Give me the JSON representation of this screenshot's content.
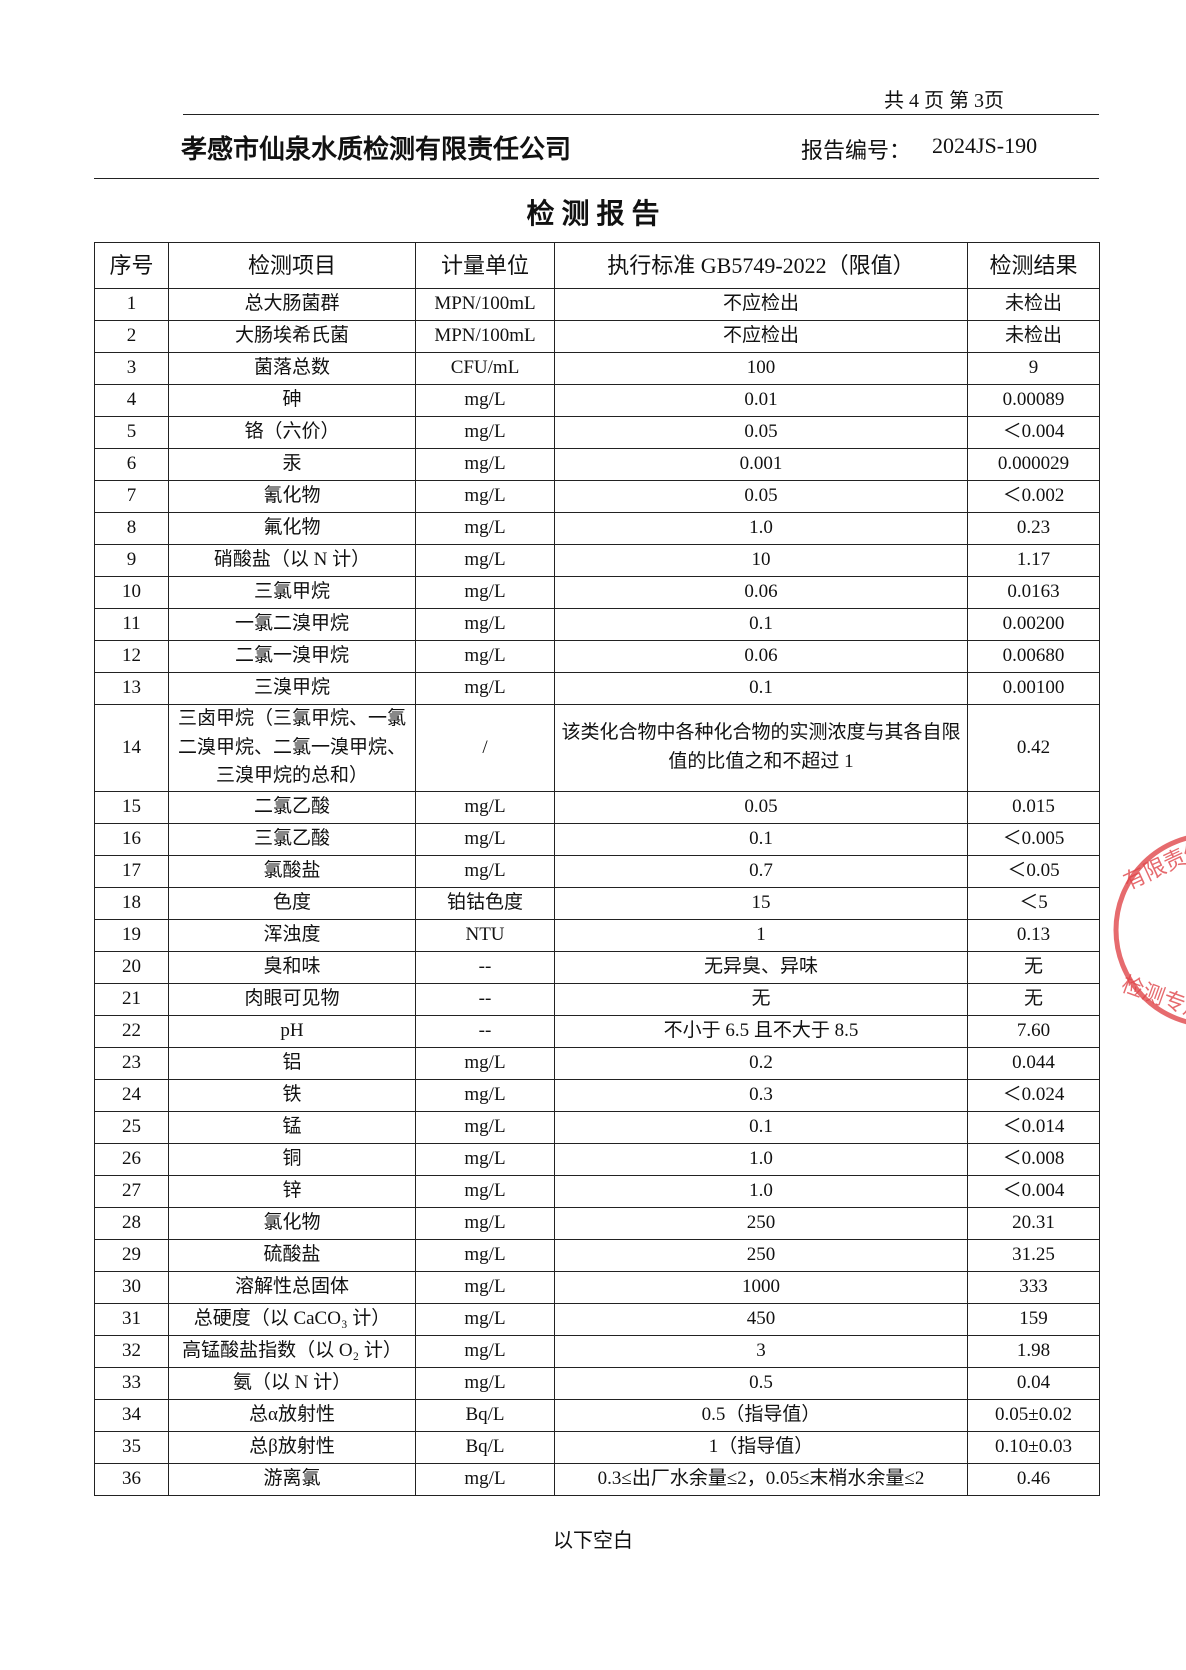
{
  "header": {
    "page_info": "共 4 页 第 3页",
    "company": "孝感市仙泉水质检测有限责任公司",
    "report_no_label": "报告编号：",
    "report_no": "2024JS-190"
  },
  "title": "检 测 报 告",
  "table": {
    "header": [
      "序号",
      "检测项目",
      "计量单位",
      "执行标准 GB5749-2022（限值）",
      "检测结果"
    ],
    "rows": [
      [
        "1",
        "总大肠菌群",
        "MPN/100mL",
        "不应检出",
        "未检出"
      ],
      [
        "2",
        "大肠埃希氏菌",
        "MPN/100mL",
        "不应检出",
        "未检出"
      ],
      [
        "3",
        "菌落总数",
        "CFU/mL",
        "100",
        "9"
      ],
      [
        "4",
        "砷",
        "mg/L",
        "0.01",
        "0.00089"
      ],
      [
        "5",
        "铬（六价）",
        "mg/L",
        "0.05",
        "＜0.004"
      ],
      [
        "6",
        "汞",
        "mg/L",
        "0.001",
        "0.000029"
      ],
      [
        "7",
        "氰化物",
        "mg/L",
        "0.05",
        "＜0.002"
      ],
      [
        "8",
        "氟化物",
        "mg/L",
        "1.0",
        "0.23"
      ],
      [
        "9",
        "硝酸盐（以 N 计）",
        "mg/L",
        "10",
        "1.17"
      ],
      [
        "10",
        "三氯甲烷",
        "mg/L",
        "0.06",
        "0.0163"
      ],
      [
        "11",
        "一氯二溴甲烷",
        "mg/L",
        "0.1",
        "0.00200"
      ],
      [
        "12",
        "二氯一溴甲烷",
        "mg/L",
        "0.06",
        "0.00680"
      ],
      [
        "13",
        "三溴甲烷",
        "mg/L",
        "0.1",
        "0.00100"
      ],
      [
        "14",
        "三卤甲烷（三氯甲烷、一氯二溴甲烷、二氯一溴甲烷、三溴甲烷的总和）",
        "/",
        "该类化合物中各种化合物的实测浓度与其各自限值的比值之和不超过 1",
        "0.42"
      ],
      [
        "15",
        "二氯乙酸",
        "mg/L",
        "0.05",
        "0.015"
      ],
      [
        "16",
        "三氯乙酸",
        "mg/L",
        "0.1",
        "＜0.005"
      ],
      [
        "17",
        "氯酸盐",
        "mg/L",
        "0.7",
        "＜0.05"
      ],
      [
        "18",
        "色度",
        "铂钴色度",
        "15",
        "＜5"
      ],
      [
        "19",
        "浑浊度",
        "NTU",
        "1",
        "0.13"
      ],
      [
        "20",
        "臭和味",
        "--",
        "无异臭、异味",
        "无"
      ],
      [
        "21",
        "肉眼可见物",
        "--",
        "无",
        "无"
      ],
      [
        "22",
        "pH",
        "--",
        "不小于 6.5 且不大于 8.5",
        "7.60"
      ],
      [
        "23",
        "铝",
        "mg/L",
        "0.2",
        "0.044"
      ],
      [
        "24",
        "铁",
        "mg/L",
        "0.3",
        "＜0.024"
      ],
      [
        "25",
        "锰",
        "mg/L",
        "0.1",
        "＜0.014"
      ],
      [
        "26",
        "铜",
        "mg/L",
        "1.0",
        "＜0.008"
      ],
      [
        "27",
        "锌",
        "mg/L",
        "1.0",
        "＜0.004"
      ],
      [
        "28",
        "氯化物",
        "mg/L",
        "250",
        "20.31"
      ],
      [
        "29",
        "硫酸盐",
        "mg/L",
        "250",
        "31.25"
      ],
      [
        "30",
        "溶解性总固体",
        "mg/L",
        "1000",
        "333"
      ],
      [
        "31",
        "总硬度（以 CaCO₃ 计）",
        "mg/L",
        "450",
        "159"
      ],
      [
        "32",
        "高锰酸盐指数（以 O₂ 计）",
        "mg/L",
        "3",
        "1.98"
      ],
      [
        "33",
        "氨（以 N 计）",
        "mg/L",
        "0.5",
        "0.04"
      ],
      [
        "34",
        "总α放射性",
        "Bq/L",
        "0.5（指导值）",
        "0.05±0.02"
      ],
      [
        "35",
        "总β放射性",
        "Bq/L",
        "1（指导值）",
        "0.10±0.03"
      ],
      [
        "36",
        "游离氯",
        "mg/L",
        "0.3≤出厂水余量≤2，0.05≤末梢水余量≤2",
        "0.46"
      ]
    ]
  },
  "footer": "以下空白",
  "stamp": {
    "top": "有限责任",
    "bottom": "检测专用"
  }
}
